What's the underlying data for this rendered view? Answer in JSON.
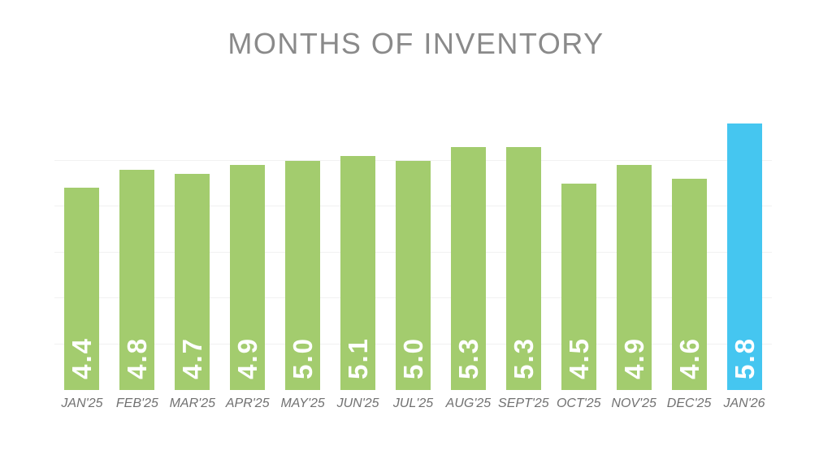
{
  "title": "MONTHS OF INVENTORY",
  "colors": {
    "background": "#ffffff",
    "bar_green": "#a3cc6e",
    "bar_highlight_blue": "#45c6f0",
    "title_gray": "#8a8a8a",
    "axis_label_gray": "#717171",
    "gridline_gray": "#f1f1f1",
    "value_text_white": "#ffffff"
  },
  "chart_data": {
    "type": "bar",
    "title": "MONTHS OF INVENTORY",
    "categories": [
      "JAN'25",
      "FEB'25",
      "MAR'25",
      "APR'25",
      "MAY'25",
      "JUN'25",
      "JUL'25",
      "AUG'25",
      "SEPT'25",
      "OCT'25",
      "NOV'25",
      "DEC'25",
      "JAN'26"
    ],
    "values": [
      4.4,
      4.8,
      4.7,
      4.9,
      5.0,
      5.1,
      5.0,
      5.3,
      5.3,
      4.5,
      4.9,
      4.6,
      5.8
    ],
    "value_labels": [
      "4.4",
      "4.8",
      "4.7",
      "4.9",
      "5.0",
      "5.1",
      "5.0",
      "5.3",
      "5.3",
      "4.5",
      "4.9",
      "4.6",
      "5.8"
    ],
    "highlight_index": 12,
    "xlabel": "",
    "ylabel": "",
    "ylim": [
      0,
      6
    ],
    "gridline_values": [
      1,
      2,
      3,
      4,
      5
    ],
    "grid": "horizontal-faint",
    "legend_position": "none",
    "y_axis_tick_labels_visible": false,
    "bar_value_label_orientation": "vertical-bottom-to-top"
  }
}
